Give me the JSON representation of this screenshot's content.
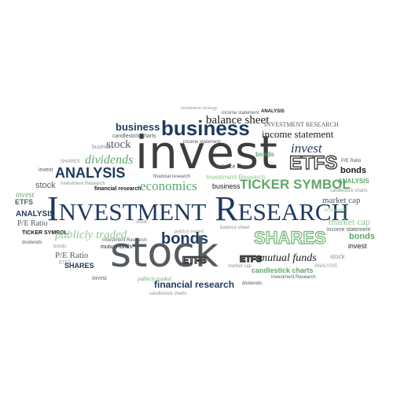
{
  "words": {
    "investmentstrategy": "investment strategy",
    "analysis_top": "ANALYSIS",
    "business_tiny": "business",
    "income_statement_top": "income statement",
    "balance_sheet_top": "balance sheet",
    "investment_research_small": "INVESTMENT RESEARCH",
    "business_med": "business",
    "business_big": "business",
    "income_statement": "income statement",
    "candlestick_charts_top": "candlestick charts",
    "stock_top": "stock",
    "invest_huge": "invest",
    "invest_right": "invest",
    "etfs_big": "ETFS",
    "pe_ratio_tiny": "P/E Ratio",
    "bonds_right": "bonds",
    "bonds_small_left": "bonds",
    "dividends_green": "dividends",
    "shares_tiny": "SHARES",
    "analysis_big": "ANALYSIS",
    "financial_research_tiny": "financial research",
    "economics": "economics",
    "business_mid": "business",
    "ticker_symbol_big": "TICKER SYMBOL",
    "analysis_right": "ANALYSIS",
    "invest_left": "invest",
    "stock_left": "stock",
    "investment_research_tiny": "Investment Research",
    "financial_research": "financial research",
    "etfs_left": "ETFS",
    "investment_research_huge": "Investment Research",
    "market_cap": "market cap",
    "economics_right": "economics",
    "analysis_left": "ANALYSIS",
    "pe_ratio_left": "P/E Ratio",
    "ticker_symbol_left": "TICKER SYMBOL",
    "publicly_traded": "publicly traded",
    "shares_big": "SHARES",
    "bonds_mid": "bonds",
    "bonds_green": "bonds",
    "invest_small_right": "invest",
    "mutual_funds": "mutual funds",
    "pe_ratio": "P/E Ratio",
    "stock_huge": "stock",
    "etfs_mid": "ETFS",
    "etfs_mid2": "ETFS",
    "candlestick_charts": "candlestick charts",
    "mutual_funds_mid": "mutual funds",
    "shares_left": "SHARES",
    "invest_bottom": "invest",
    "publicly_traded_bottom": "publicly traded",
    "financial_research_bottom": "financial research",
    "dividends_bottom": "dividends",
    "stock_bottom_right": "stock",
    "income_statement_right": "income statement",
    "market_cap_right": "market cap",
    "candlestick_charts_bottom": "candlestick charts"
  }
}
